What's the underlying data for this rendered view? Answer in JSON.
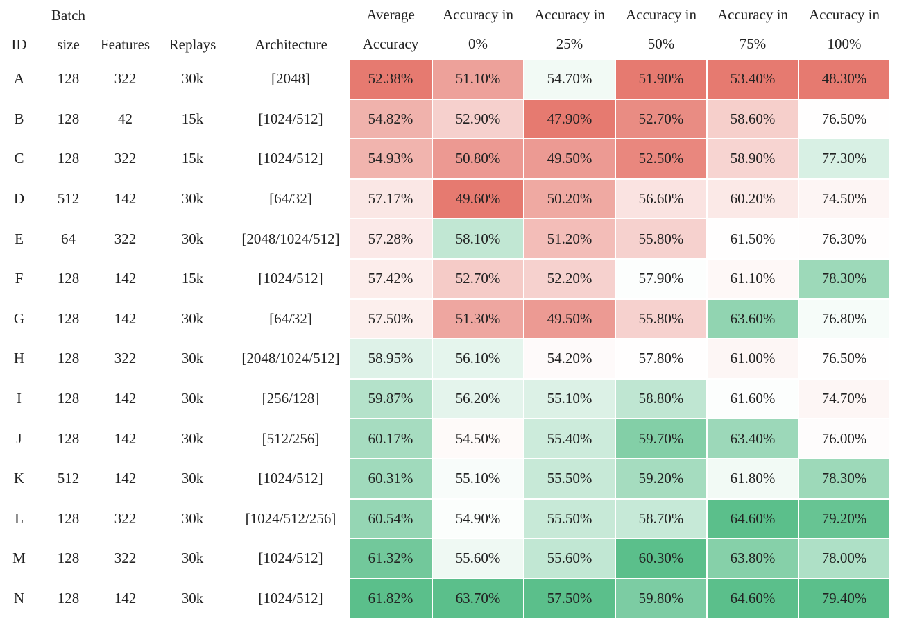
{
  "headers": [
    [
      "",
      "ID"
    ],
    [
      "Batch",
      "size"
    ],
    [
      "",
      "Features"
    ],
    [
      "",
      "Replays"
    ],
    [
      "",
      "Architecture"
    ],
    [
      "Average",
      "Accuracy"
    ],
    [
      "Accuracy in",
      "0%"
    ],
    [
      "Accuracy in",
      "25%"
    ],
    [
      "Accuracy in",
      "50%"
    ],
    [
      "Accuracy in",
      "75%"
    ],
    [
      "Accuracy in",
      "100%"
    ]
  ],
  "rows": [
    [
      "A",
      "128",
      "322",
      "30k",
      "[2048]",
      "52.38%",
      "51.10%",
      "54.70%",
      "51.90%",
      "53.40%",
      "48.30%"
    ],
    [
      "B",
      "128",
      "42",
      "15k",
      "[1024/512]",
      "54.82%",
      "52.90%",
      "47.90%",
      "52.70%",
      "58.60%",
      "76.50%"
    ],
    [
      "C",
      "128",
      "322",
      "15k",
      "[1024/512]",
      "54.93%",
      "50.80%",
      "49.50%",
      "52.50%",
      "58.90%",
      "77.30%"
    ],
    [
      "D",
      "512",
      "142",
      "30k",
      "[64/32]",
      "57.17%",
      "49.60%",
      "50.20%",
      "56.60%",
      "60.20%",
      "74.50%"
    ],
    [
      "E",
      "64",
      "322",
      "30k",
      "[2048/1024/512]",
      "57.28%",
      "58.10%",
      "51.20%",
      "55.80%",
      "61.50%",
      "76.30%"
    ],
    [
      "F",
      "128",
      "142",
      "15k",
      "[1024/512]",
      "57.42%",
      "52.70%",
      "52.20%",
      "57.90%",
      "61.10%",
      "78.30%"
    ],
    [
      "G",
      "128",
      "142",
      "30k",
      "[64/32]",
      "57.50%",
      "51.30%",
      "49.50%",
      "55.80%",
      "63.60%",
      "76.80%"
    ],
    [
      "H",
      "128",
      "322",
      "30k",
      "[2048/1024/512]",
      "58.95%",
      "56.10%",
      "54.20%",
      "57.80%",
      "61.00%",
      "76.50%"
    ],
    [
      "I",
      "128",
      "142",
      "30k",
      "[256/128]",
      "59.87%",
      "56.20%",
      "55.10%",
      "58.80%",
      "61.60%",
      "74.70%"
    ],
    [
      "J",
      "128",
      "142",
      "30k",
      "[512/256]",
      "60.17%",
      "54.50%",
      "55.40%",
      "59.70%",
      "63.40%",
      "76.00%"
    ],
    [
      "K",
      "512",
      "142",
      "30k",
      "[1024/512]",
      "60.31%",
      "55.10%",
      "55.50%",
      "59.20%",
      "61.80%",
      "78.30%"
    ],
    [
      "L",
      "128",
      "322",
      "30k",
      "[1024/512/256]",
      "60.54%",
      "54.90%",
      "55.50%",
      "58.70%",
      "64.60%",
      "79.20%"
    ],
    [
      "M",
      "128",
      "322",
      "30k",
      "[1024/512]",
      "61.32%",
      "55.60%",
      "55.60%",
      "60.30%",
      "63.80%",
      "78.00%"
    ],
    [
      "N",
      "128",
      "142",
      "30k",
      "[1024/512]",
      "61.82%",
      "63.70%",
      "57.50%",
      "59.80%",
      "64.60%",
      "79.40%"
    ]
  ],
  "heatmap_colors": {
    "low": "#e67a70",
    "mid": "#ffffff",
    "high": "#5bbf8b"
  }
}
